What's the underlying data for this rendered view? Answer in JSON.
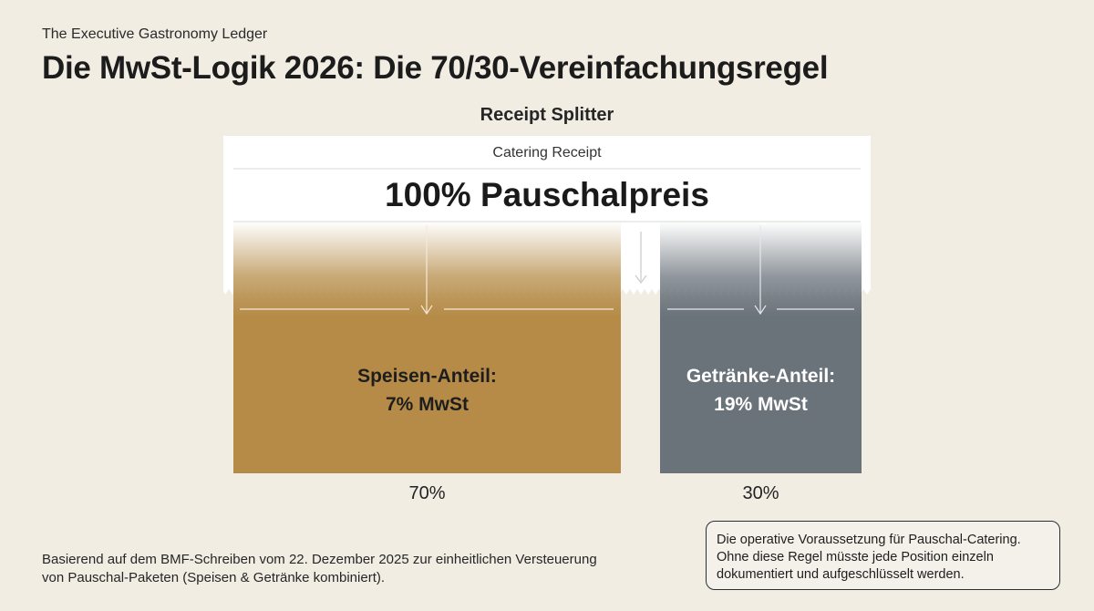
{
  "header": {
    "eyebrow": "The Executive Gastronomy Ledger",
    "title": "Die MwSt-Logik 2026: Die 70/30-Vereinfachungsregel"
  },
  "diagram": {
    "section_title": "Receipt Splitter",
    "receipt": {
      "label": "Catering Receipt",
      "main": "100% Pauschalpreis"
    },
    "food": {
      "label": "Speisen-Anteil:",
      "tax": "7% MwSt",
      "share_percent": 70,
      "share_label": "70%",
      "color": "#b58b47"
    },
    "drink": {
      "label": "Getränke-Anteil:",
      "tax": "19% MwSt",
      "share_percent": 30,
      "share_label": "30%",
      "color": "#6a727a"
    }
  },
  "footer": {
    "source_note": "Basierend auf dem BMF-Schreiben vom 22. Dezember 2025 zur einheitlichen Versteuerung von Pauschal-Paketen (Speisen & Getränke kombiniert).",
    "callout": "Die operative Voraussetzung für Pauschal-Catering. Ohne diese Regel müsste jede Position einzeln dokumentiert und aufgeschlüsselt werden."
  }
}
